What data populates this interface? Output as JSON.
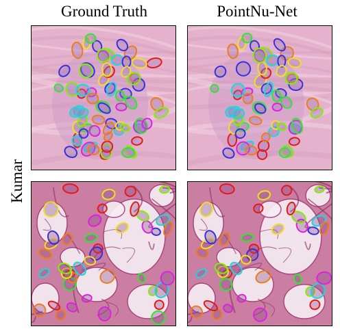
{
  "figure": {
    "columns": [
      {
        "title": "Ground Truth"
      },
      {
        "title": "PointNu-Net"
      }
    ],
    "rows": [
      {
        "label": "Kumar"
      }
    ]
  },
  "palette": {
    "nuclei": [
      "#2ee830",
      "#e020e0",
      "#18d8e0",
      "#3830e0",
      "#f07c18",
      "#f0e020",
      "#e81818",
      "#80f000"
    ],
    "tissue_top": "#e4b2cc",
    "tissue_bottom": "#d89ab8"
  }
}
